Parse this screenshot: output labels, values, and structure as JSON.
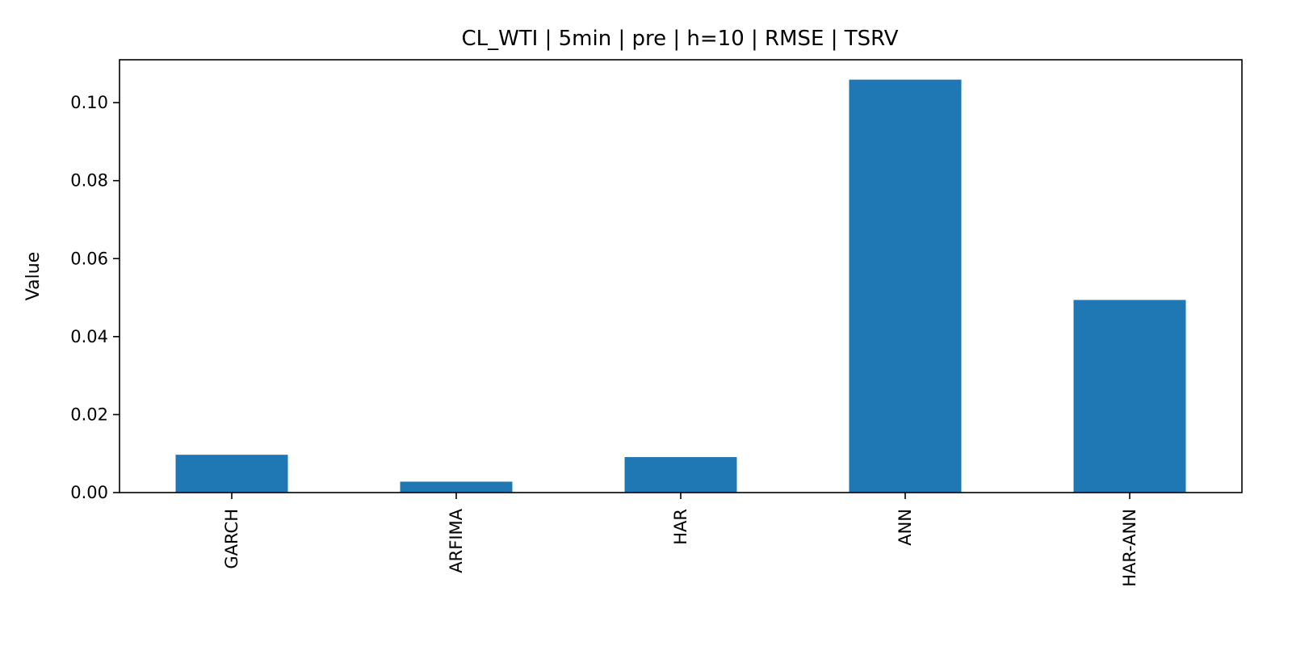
{
  "chart_data": {
    "type": "bar",
    "title": "CL_WTI | 5min | pre | h=10 | RMSE | TSRV",
    "xlabel": "",
    "ylabel": "Value",
    "categories": [
      "GARCH",
      "ARFIMA",
      "HAR",
      "ANN",
      "HAR-ANN"
    ],
    "values": [
      0.0097,
      0.0028,
      0.0091,
      0.1059,
      0.0494
    ],
    "ylim": [
      0,
      0.111
    ],
    "yticks": [
      0.0,
      0.02,
      0.04,
      0.06,
      0.08,
      0.1
    ],
    "ytick_labels": [
      "0.00",
      "0.02",
      "0.04",
      "0.06",
      "0.08",
      "0.10"
    ],
    "bar_color": "#1f77b4",
    "grid": false,
    "legend": "none",
    "xtick_rotation": "vertical"
  }
}
